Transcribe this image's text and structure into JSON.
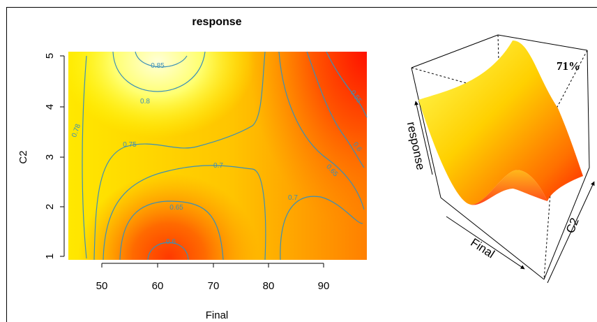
{
  "chart_data": [
    {
      "type": "heatmap",
      "title": "response",
      "xlabel": "Final",
      "ylabel": "C2",
      "xlim": [
        44,
        98
      ],
      "ylim": [
        0.9,
        5.1
      ],
      "x_ticks": [
        "50",
        "60",
        "70",
        "80",
        "90"
      ],
      "y_ticks": [
        "1",
        "2",
        "3",
        "4",
        "5"
      ],
      "color_scale": [
        "#ffffd0",
        "#ffff40",
        "#ffd400",
        "#ff9400",
        "#ff2000"
      ],
      "contours": [
        {
          "label": "0.85",
          "x": 63,
          "y": 4.8
        },
        {
          "label": "0.8",
          "x": 61,
          "y": 4.1
        },
        {
          "label": "0.78",
          "x": 47,
          "y": 3.5
        },
        {
          "label": "0.75",
          "x": 57,
          "y": 3.25
        },
        {
          "label": "0.7",
          "x": 72,
          "y": 2.8
        },
        {
          "label": "0.65",
          "x": 63,
          "y": 2.0
        },
        {
          "label": "0.6",
          "x": 63,
          "y": 1.27
        },
        {
          "label": "0.7",
          "x": 85,
          "y": 2.15
        },
        {
          "label": "0.65",
          "x": 88,
          "y": 2.7
        },
        {
          "label": "0.6",
          "x": 93,
          "y": 3.25
        },
        {
          "label": "0.55",
          "x": 93,
          "y": 4.3
        }
      ]
    },
    {
      "type": "surface",
      "zlabel": "response",
      "xlabel": "Final",
      "ylabel": "C2",
      "annotation": "71%"
    }
  ],
  "colors": {
    "frame": "#000000",
    "contour": "#3a8fb7",
    "axis": "#000000"
  }
}
